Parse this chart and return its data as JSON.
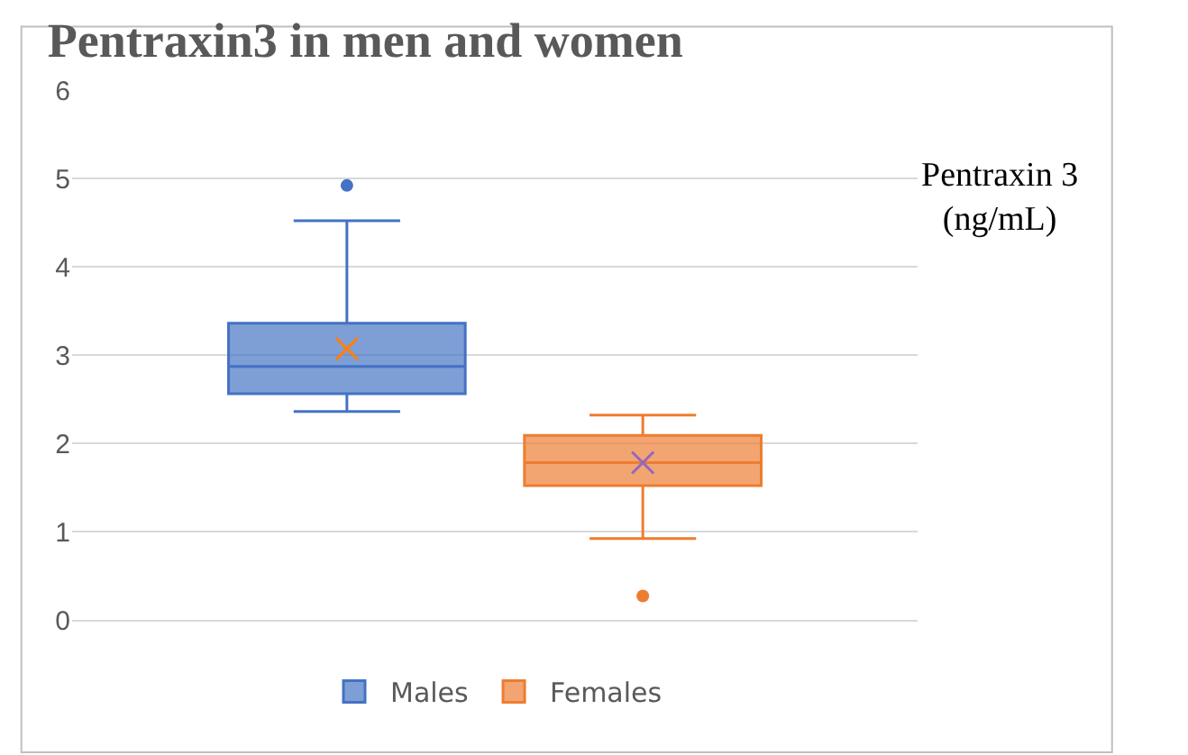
{
  "chart_data": {
    "type": "box",
    "title": "Pentraxin3 in men and women",
    "annotations": [
      "Pentraxin 3 (ng/mL)"
    ],
    "categories": [
      null
    ],
    "series": [
      {
        "name": "Males",
        "color": "#4472c4",
        "boxes": [
          {
            "low": 2.36,
            "q1": 2.56,
            "median": 2.87,
            "q3": 3.36,
            "high": 4.52,
            "mean": 3.07,
            "outliers": [
              4.92
            ]
          }
        ]
      },
      {
        "name": "Females",
        "color": "#ed7d31",
        "boxes": [
          {
            "low": 0.92,
            "q1": 1.52,
            "median": 1.78,
            "q3": 2.09,
            "high": 2.32,
            "mean": 1.78,
            "outliers": [
              0.27
            ]
          }
        ]
      }
    ],
    "ylim": [
      0,
      6
    ],
    "yticks": [
      0,
      1,
      2,
      3,
      4,
      5,
      6
    ],
    "grid": "y",
    "legend": "bottom",
    "tick_labels": "y"
  }
}
